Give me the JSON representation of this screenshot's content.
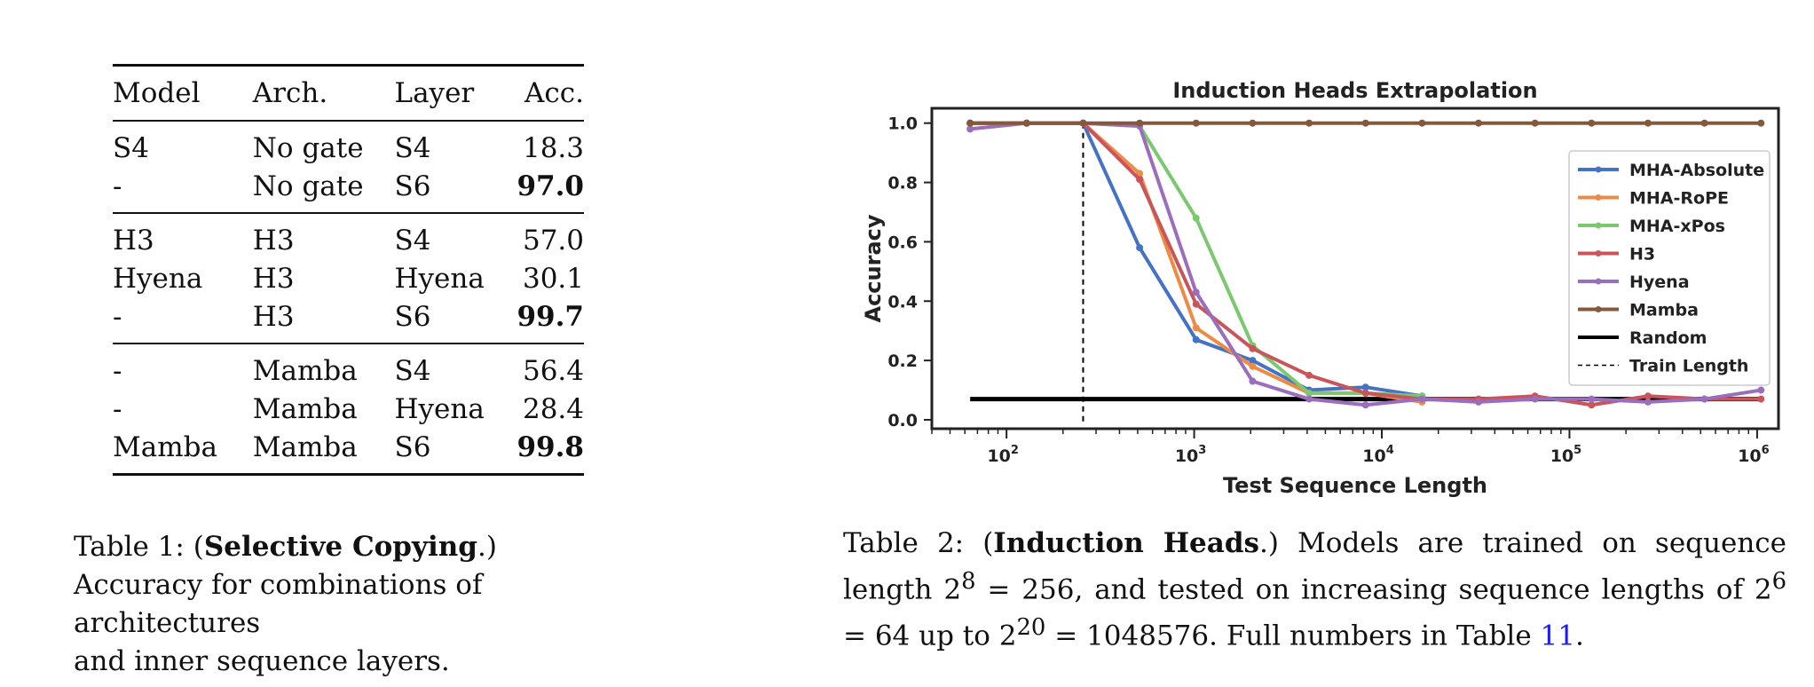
{
  "table1": {
    "headers": [
      "Model",
      "Arch.",
      "Layer",
      "Acc."
    ],
    "groups": [
      [
        {
          "model": "S4",
          "arch": "No gate",
          "layer": "S4",
          "acc": "18.3",
          "bold": false
        },
        {
          "model": "-",
          "arch": "No gate",
          "layer": "S6",
          "acc": "97.0",
          "bold": true
        }
      ],
      [
        {
          "model": "H3",
          "arch": "H3",
          "layer": "S4",
          "acc": "57.0",
          "bold": false
        },
        {
          "model": "Hyena",
          "arch": "H3",
          "layer": "Hyena",
          "acc": "30.1",
          "bold": false
        },
        {
          "model": "-",
          "arch": "H3",
          "layer": "S6",
          "acc": "99.7",
          "bold": true
        }
      ],
      [
        {
          "model": "-",
          "arch": "Mamba",
          "layer": "S4",
          "acc": "56.4",
          "bold": false
        },
        {
          "model": "-",
          "arch": "Mamba",
          "layer": "Hyena",
          "acc": "28.4",
          "bold": false
        },
        {
          "model": "Mamba",
          "arch": "Mamba",
          "layer": "S6",
          "acc": "99.8",
          "bold": true
        }
      ]
    ]
  },
  "caption1": {
    "prefix": "Table 1: (",
    "bold": "Selective Copying",
    "suffix": ".)",
    "line2": "Accuracy for combinations of architectures",
    "line3": "and inner sequence layers."
  },
  "caption2": {
    "prefix": "Table 2: (",
    "bold": "Induction Heads",
    "text1": ".)  Models are trained on sequence length 2",
    "sup1": "8",
    "text2": " = 256, and tested on increasing sequence lengths of 2",
    "sup2": "6",
    "text3": " = 64 up to 2",
    "sup3": "20",
    "text4": " = 1048576. Full numbers in Table ",
    "ref": "11",
    "end": "."
  },
  "chart_data": {
    "type": "line",
    "title": "Induction Heads Extrapolation",
    "xlabel": "Test Sequence Length",
    "ylabel": "Accuracy",
    "xscale": "log2",
    "xlim": [
      40,
      1300000
    ],
    "ylim": [
      -0.03,
      1.05
    ],
    "yticks": [
      "0.0",
      "0.2",
      "0.4",
      "0.6",
      "0.8",
      "1.0"
    ],
    "xticks": [
      {
        "base": "10",
        "exp": "2"
      },
      {
        "base": "10",
        "exp": "3"
      },
      {
        "base": "10",
        "exp": "4"
      },
      {
        "base": "10",
        "exp": "5"
      },
      {
        "base": "10",
        "exp": "6"
      }
    ],
    "x": [
      64,
      128,
      256,
      512,
      1024,
      2048,
      4096,
      8192,
      16384,
      32768,
      65536,
      131072,
      262144,
      524288,
      1048576
    ],
    "series": [
      {
        "name": "MHA-Absolute",
        "color": "#4472c4",
        "values": [
          1.0,
          1.0,
          1.0,
          0.58,
          0.27,
          0.2,
          0.1,
          0.11,
          0.08,
          null,
          null,
          null,
          null,
          null,
          null
        ]
      },
      {
        "name": "MHA-RoPE",
        "color": "#ed8b45",
        "values": [
          1.0,
          1.0,
          1.0,
          0.83,
          0.31,
          0.18,
          0.09,
          0.09,
          0.06,
          null,
          null,
          null,
          null,
          null,
          null
        ]
      },
      {
        "name": "MHA-xPos",
        "color": "#7bc96f",
        "values": [
          1.0,
          1.0,
          1.0,
          0.99,
          0.68,
          0.25,
          0.09,
          0.09,
          0.08,
          null,
          null,
          null,
          null,
          null,
          null
        ]
      },
      {
        "name": "H3",
        "color": "#c9555a",
        "values": [
          1.0,
          1.0,
          1.0,
          0.81,
          0.39,
          0.24,
          0.15,
          0.09,
          0.07,
          0.07,
          0.08,
          0.05,
          0.08,
          0.07,
          0.07
        ]
      },
      {
        "name": "Hyena",
        "color": "#9b6ebd",
        "values": [
          0.98,
          1.0,
          1.0,
          0.99,
          0.43,
          0.13,
          0.07,
          0.05,
          0.07,
          0.06,
          0.07,
          0.07,
          0.06,
          0.07,
          0.1
        ]
      },
      {
        "name": "Mamba",
        "color": "#85583c",
        "values": [
          1.0,
          1.0,
          1.0,
          1.0,
          1.0,
          1.0,
          1.0,
          1.0,
          1.0,
          1.0,
          1.0,
          1.0,
          1.0,
          1.0,
          1.0
        ]
      }
    ],
    "random": {
      "name": "Random",
      "value": 0.07,
      "color": "#000000"
    },
    "train_length": {
      "name": "Train Length",
      "x": 256
    },
    "legend": "right"
  }
}
